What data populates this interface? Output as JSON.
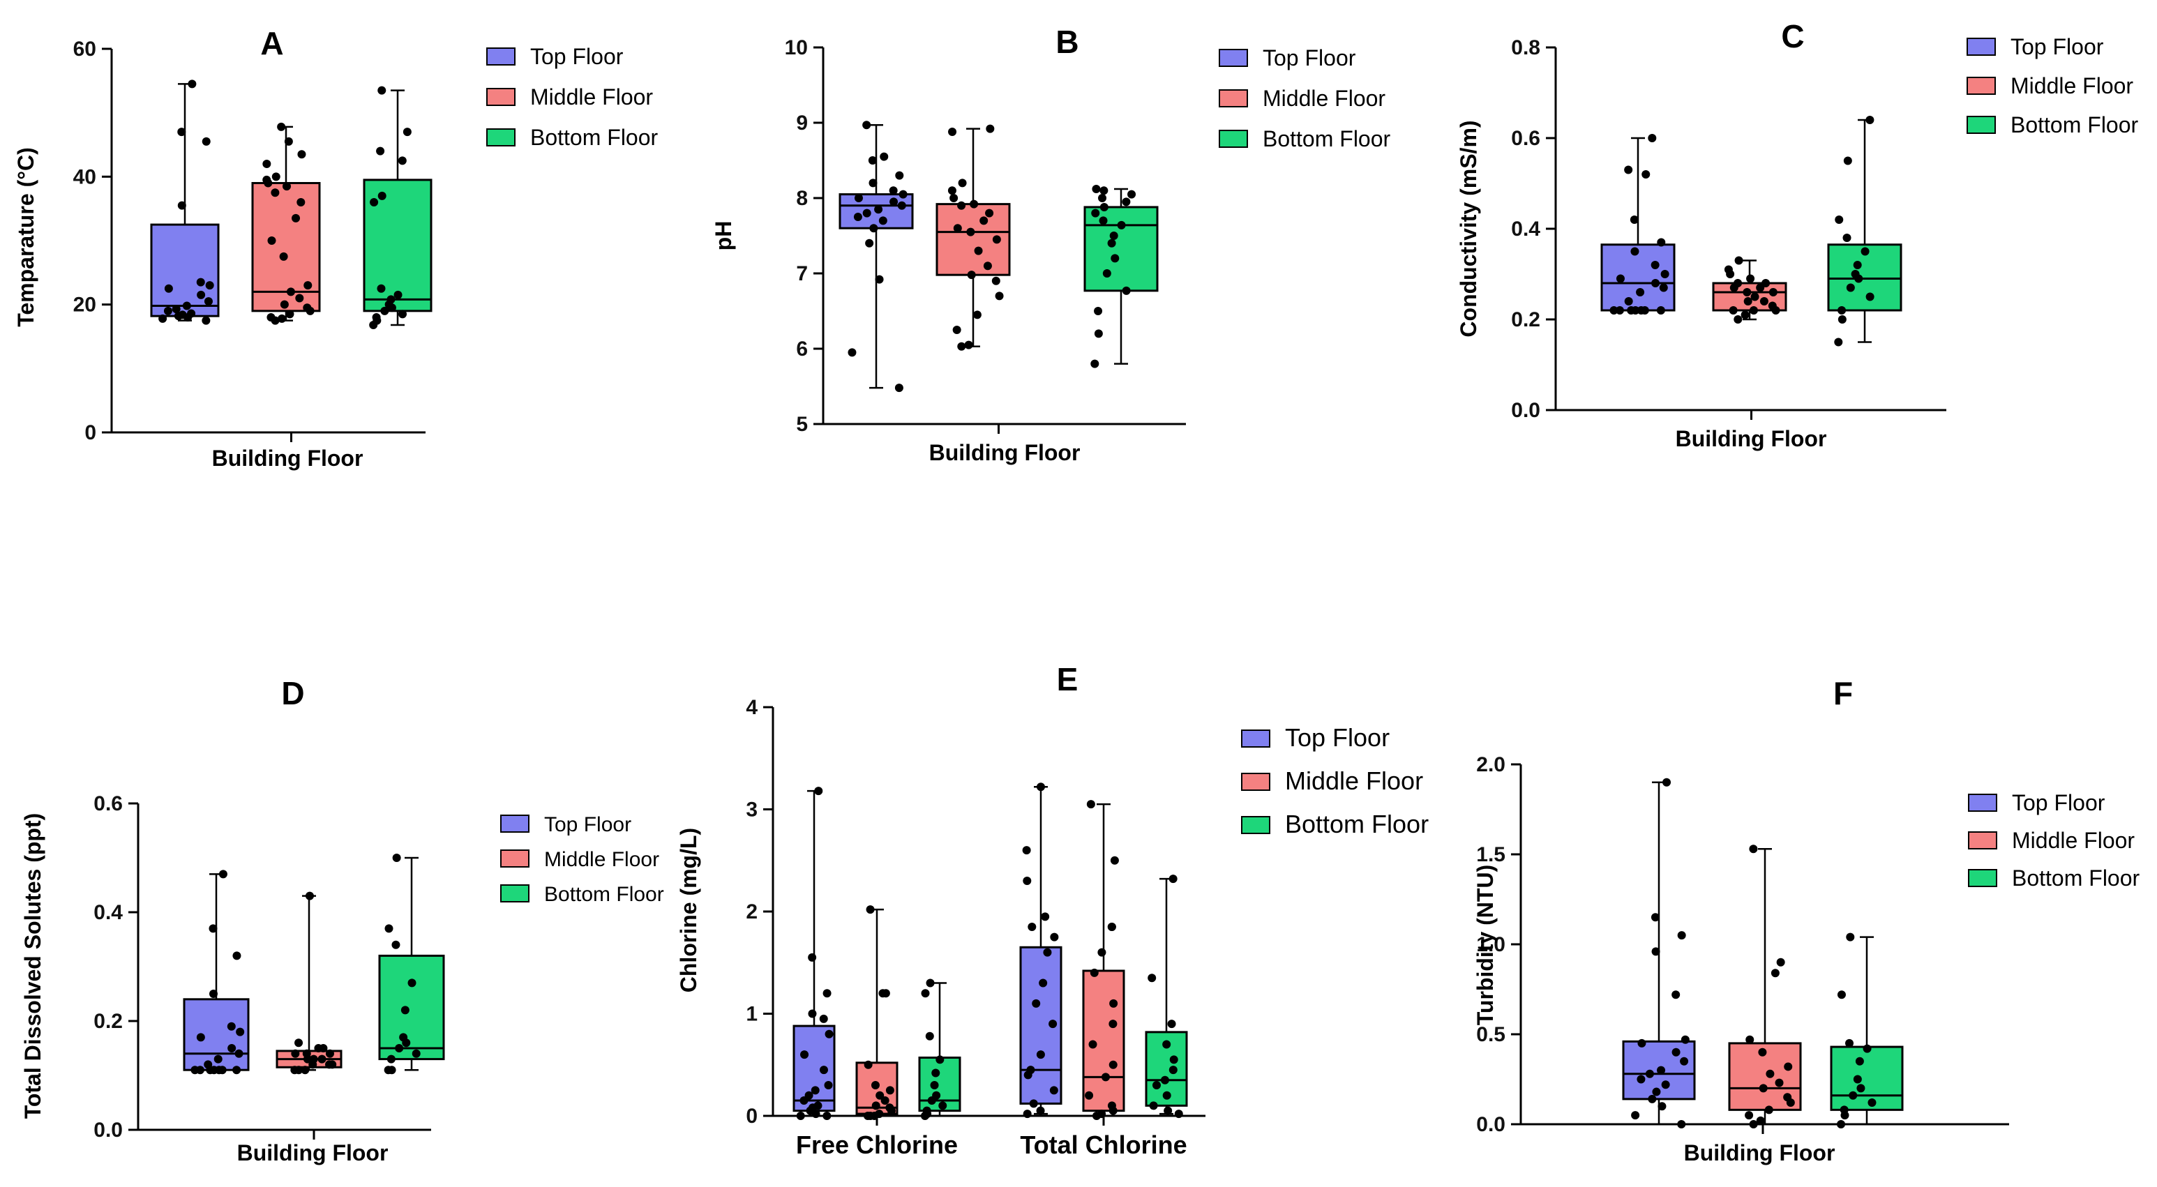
{
  "colors": {
    "top": "#8080F0",
    "middle": "#F48181",
    "bottom": "#1ED67A"
  },
  "chart_data": [
    {
      "id": "A",
      "type": "box",
      "title": "A",
      "xlabel": "Building Floor",
      "ylabel": "Temparature (°C)",
      "ylim": [
        0,
        60
      ],
      "yticks": [
        "0",
        "20",
        "40",
        "60"
      ],
      "legend": [
        "Top Floor",
        "Middle Floor",
        "Bottom Floor"
      ],
      "groups": [
        {
          "label": "",
          "series": [
            {
              "name": "Top Floor",
              "min": 17.5,
              "q1": 18.2,
              "median": 19.8,
              "q3": 32.5,
              "max": 54.5,
              "points": [
                17.5,
                17.8,
                18.0,
                18.2,
                18.4,
                18.6,
                19.0,
                19.3,
                19.8,
                20.5,
                21.5,
                22.5,
                23.0,
                23.5,
                35.5,
                45.5,
                47.0,
                54.5
              ]
            },
            {
              "name": "Middle Floor",
              "min": 17.5,
              "q1": 19.0,
              "median": 22.0,
              "q3": 39.0,
              "max": 47.8,
              "points": [
                17.5,
                17.8,
                18.0,
                18.5,
                19.0,
                19.5,
                20.0,
                21.0,
                22.0,
                23.0,
                27.5,
                30.0,
                33.5,
                36.0,
                37.5,
                38.5,
                39.0,
                39.5,
                40.0,
                42.0,
                43.5,
                45.5,
                47.8
              ]
            },
            {
              "name": "Bottom Floor",
              "min": 16.8,
              "q1": 19.0,
              "median": 20.8,
              "q3": 39.5,
              "max": 53.5,
              "points": [
                16.8,
                17.5,
                18.0,
                18.5,
                19.0,
                19.5,
                20.0,
                20.8,
                21.5,
                22.5,
                36.0,
                37.0,
                42.5,
                44.0,
                47.0,
                53.5
              ]
            }
          ]
        }
      ]
    },
    {
      "id": "B",
      "type": "box",
      "title": "B",
      "xlabel": "Building Floor",
      "ylabel": "pH",
      "ylim": [
        5,
        10
      ],
      "yticks": [
        "5",
        "6",
        "7",
        "8",
        "9",
        "10"
      ],
      "legend": [
        "Top Floor",
        "Middle Floor",
        "Bottom Floor"
      ],
      "groups": [
        {
          "label": "",
          "series": [
            {
              "name": "Top Floor",
              "min": 5.48,
              "q1": 7.6,
              "median": 7.9,
              "q3": 8.05,
              "max": 8.97,
              "points": [
                5.48,
                5.95,
                6.92,
                7.4,
                7.6,
                7.7,
                7.75,
                7.8,
                7.85,
                7.9,
                7.95,
                8.0,
                8.05,
                8.1,
                8.2,
                8.3,
                8.5,
                8.55,
                8.97
              ]
            },
            {
              "name": "Middle Floor",
              "min": 6.03,
              "q1": 6.98,
              "median": 7.55,
              "q3": 7.92,
              "max": 8.92,
              "points": [
                6.03,
                6.05,
                6.25,
                6.45,
                6.7,
                6.9,
                6.98,
                7.1,
                7.3,
                7.45,
                7.55,
                7.6,
                7.7,
                7.8,
                7.9,
                7.92,
                8.0,
                8.1,
                8.2,
                8.88,
                8.92
              ]
            },
            {
              "name": "Bottom Floor",
              "min": 5.8,
              "q1": 6.77,
              "median": 7.64,
              "q3": 7.88,
              "max": 8.12,
              "points": [
                5.8,
                6.2,
                6.5,
                6.77,
                7.0,
                7.2,
                7.4,
                7.5,
                7.64,
                7.7,
                7.8,
                7.88,
                7.95,
                8.0,
                8.05,
                8.1,
                8.12
              ]
            }
          ]
        }
      ]
    },
    {
      "id": "C",
      "type": "box",
      "title": "C",
      "xlabel": "Building Floor",
      "ylabel": "Conductivity (mS/m)",
      "ylim": [
        0,
        0.8
      ],
      "yticks": [
        "0.0",
        "0.2",
        "0.4",
        "0.6",
        "0.8"
      ],
      "legend": [
        "Top Floor",
        "Middle Floor",
        "Bottom Floor"
      ],
      "groups": [
        {
          "label": "",
          "series": [
            {
              "name": "Top Floor",
              "min": 0.22,
              "q1": 0.22,
              "median": 0.28,
              "q3": 0.365,
              "max": 0.6,
              "points": [
                0.22,
                0.22,
                0.22,
                0.22,
                0.22,
                0.22,
                0.22,
                0.24,
                0.26,
                0.27,
                0.28,
                0.29,
                0.3,
                0.32,
                0.35,
                0.37,
                0.42,
                0.52,
                0.53,
                0.6
              ]
            },
            {
              "name": "Middle Floor",
              "min": 0.2,
              "q1": 0.22,
              "median": 0.26,
              "q3": 0.28,
              "max": 0.33,
              "points": [
                0.2,
                0.21,
                0.22,
                0.22,
                0.22,
                0.23,
                0.24,
                0.24,
                0.25,
                0.26,
                0.26,
                0.27,
                0.27,
                0.28,
                0.28,
                0.29,
                0.3,
                0.31,
                0.33
              ]
            },
            {
              "name": "Bottom Floor",
              "min": 0.15,
              "q1": 0.22,
              "median": 0.29,
              "q3": 0.365,
              "max": 0.64,
              "points": [
                0.15,
                0.2,
                0.22,
                0.25,
                0.27,
                0.29,
                0.3,
                0.32,
                0.35,
                0.38,
                0.42,
                0.55,
                0.64
              ]
            }
          ]
        }
      ]
    },
    {
      "id": "D",
      "type": "box",
      "title": "D",
      "xlabel": "Building Floor",
      "ylabel": "Total Dissolved Solutes (ppt)",
      "ylim": [
        0,
        0.6
      ],
      "yticks": [
        "0.0",
        "0.2",
        "0.4",
        "0.6"
      ],
      "legend": [
        "Top Floor",
        "Middle Floor",
        "Bottom Floor"
      ],
      "groups": [
        {
          "label": "",
          "series": [
            {
              "name": "Top Floor",
              "min": 0.11,
              "q1": 0.11,
              "median": 0.14,
              "q3": 0.24,
              "max": 0.47,
              "points": [
                0.11,
                0.11,
                0.11,
                0.11,
                0.11,
                0.11,
                0.11,
                0.12,
                0.13,
                0.14,
                0.15,
                0.17,
                0.18,
                0.19,
                0.25,
                0.32,
                0.37,
                0.47
              ]
            },
            {
              "name": "Middle Floor",
              "min": 0.11,
              "q1": 0.115,
              "median": 0.13,
              "q3": 0.145,
              "max": 0.43,
              "points": [
                0.11,
                0.11,
                0.11,
                0.12,
                0.12,
                0.12,
                0.13,
                0.13,
                0.13,
                0.14,
                0.14,
                0.14,
                0.15,
                0.15,
                0.16,
                0.43
              ]
            },
            {
              "name": "Bottom Floor",
              "min": 0.11,
              "q1": 0.13,
              "median": 0.15,
              "q3": 0.32,
              "max": 0.5,
              "points": [
                0.11,
                0.11,
                0.13,
                0.14,
                0.15,
                0.16,
                0.17,
                0.22,
                0.27,
                0.34,
                0.37,
                0.5
              ]
            }
          ]
        }
      ]
    },
    {
      "id": "E",
      "type": "box",
      "title": "E",
      "xlabel": "",
      "ylabel": "Chlorine (mg/L)",
      "ylim": [
        0,
        4
      ],
      "yticks": [
        "0",
        "1",
        "2",
        "3",
        "4"
      ],
      "legend": [
        "Top Floor",
        "Middle Floor",
        "Bottom Floor"
      ],
      "groups": [
        {
          "label": "Free Chlorine",
          "series": [
            {
              "name": "Top Floor",
              "min": 0.0,
              "q1": 0.05,
              "median": 0.15,
              "q3": 0.88,
              "max": 3.18,
              "points": [
                0.0,
                0.0,
                0.02,
                0.05,
                0.08,
                0.1,
                0.15,
                0.2,
                0.25,
                0.3,
                0.45,
                0.6,
                0.8,
                0.95,
                1.0,
                1.2,
                1.55,
                3.18
              ]
            },
            {
              "name": "Middle Floor",
              "min": 0.0,
              "q1": 0.02,
              "median": 0.08,
              "q3": 0.52,
              "max": 2.02,
              "points": [
                0.0,
                0.0,
                0.0,
                0.02,
                0.05,
                0.08,
                0.1,
                0.15,
                0.2,
                0.25,
                0.3,
                0.5,
                1.2,
                1.2,
                2.02
              ]
            },
            {
              "name": "Bottom Floor",
              "min": 0.0,
              "q1": 0.05,
              "median": 0.15,
              "q3": 0.57,
              "max": 1.3,
              "points": [
                0.0,
                0.02,
                0.05,
                0.1,
                0.15,
                0.2,
                0.3,
                0.42,
                0.55,
                0.78,
                1.2,
                1.3
              ]
            }
          ]
        },
        {
          "label": "Total Chlorine",
          "series": [
            {
              "name": "Top Floor",
              "min": 0.02,
              "q1": 0.12,
              "median": 0.45,
              "q3": 1.65,
              "max": 3.22,
              "points": [
                0.02,
                0.05,
                0.12,
                0.25,
                0.4,
                0.45,
                0.6,
                0.9,
                1.1,
                1.3,
                1.6,
                1.75,
                1.85,
                1.95,
                2.3,
                2.6,
                3.22
              ]
            },
            {
              "name": "Middle Floor",
              "min": 0.0,
              "q1": 0.05,
              "median": 0.38,
              "q3": 1.42,
              "max": 3.05,
              "points": [
                0.0,
                0.02,
                0.05,
                0.1,
                0.2,
                0.38,
                0.5,
                0.7,
                0.9,
                1.1,
                1.4,
                1.6,
                1.85,
                1.85,
                2.5,
                3.05
              ]
            },
            {
              "name": "Bottom Floor",
              "min": 0.02,
              "q1": 0.1,
              "median": 0.35,
              "q3": 0.82,
              "max": 2.32,
              "points": [
                0.02,
                0.05,
                0.1,
                0.2,
                0.3,
                0.35,
                0.45,
                0.55,
                0.7,
                0.9,
                1.35,
                2.32
              ]
            }
          ]
        }
      ]
    },
    {
      "id": "F",
      "type": "box",
      "title": "F",
      "xlabel": "Building Floor",
      "ylabel": "Turbidity (NTU)",
      "ylim": [
        0,
        2.0
      ],
      "yticks": [
        "0.0",
        "0.5",
        "1.0",
        "1.5",
        "2.0"
      ],
      "legend": [
        "Top Floor",
        "Middle Floor",
        "Bottom Floor"
      ],
      "groups": [
        {
          "label": "",
          "series": [
            {
              "name": "Top Floor",
              "min": 0.0,
              "q1": 0.14,
              "median": 0.28,
              "q3": 0.46,
              "max": 1.9,
              "points": [
                0.0,
                0.05,
                0.1,
                0.14,
                0.18,
                0.22,
                0.25,
                0.28,
                0.3,
                0.35,
                0.4,
                0.45,
                0.47,
                0.72,
                0.96,
                1.05,
                1.15,
                1.9
              ]
            },
            {
              "name": "Middle Floor",
              "min": 0.0,
              "q1": 0.08,
              "median": 0.2,
              "q3": 0.45,
              "max": 1.53,
              "points": [
                0.0,
                0.02,
                0.05,
                0.08,
                0.12,
                0.15,
                0.2,
                0.23,
                0.28,
                0.32,
                0.4,
                0.47,
                0.84,
                0.9,
                1.53
              ]
            },
            {
              "name": "Bottom Floor",
              "min": 0.0,
              "q1": 0.08,
              "median": 0.16,
              "q3": 0.43,
              "max": 1.04,
              "points": [
                0.0,
                0.05,
                0.08,
                0.12,
                0.16,
                0.2,
                0.25,
                0.35,
                0.42,
                0.45,
                0.72,
                1.04
              ]
            }
          ]
        }
      ]
    }
  ]
}
